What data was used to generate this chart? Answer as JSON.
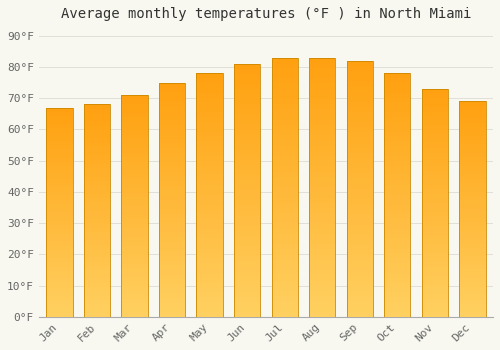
{
  "title": "Average monthly temperatures (°F ) in North Miami",
  "months": [
    "Jan",
    "Feb",
    "Mar",
    "Apr",
    "May",
    "Jun",
    "Jul",
    "Aug",
    "Sep",
    "Oct",
    "Nov",
    "Dec"
  ],
  "values": [
    67,
    68,
    71,
    75,
    78,
    81,
    83,
    83,
    82,
    78,
    73,
    69
  ],
  "bar_color_bottom": "#FFD060",
  "bar_color_top": "#FFA010",
  "bar_edge_color": "#CC8800",
  "background_color": "#F8F8F0",
  "grid_color": "#E0E0D8",
  "yticks": [
    0,
    10,
    20,
    30,
    40,
    50,
    60,
    70,
    80,
    90
  ],
  "ylim": [
    0,
    93
  ],
  "title_fontsize": 10,
  "tick_fontsize": 8,
  "font_family": "monospace",
  "bar_width": 0.7,
  "gradient_steps": 50
}
